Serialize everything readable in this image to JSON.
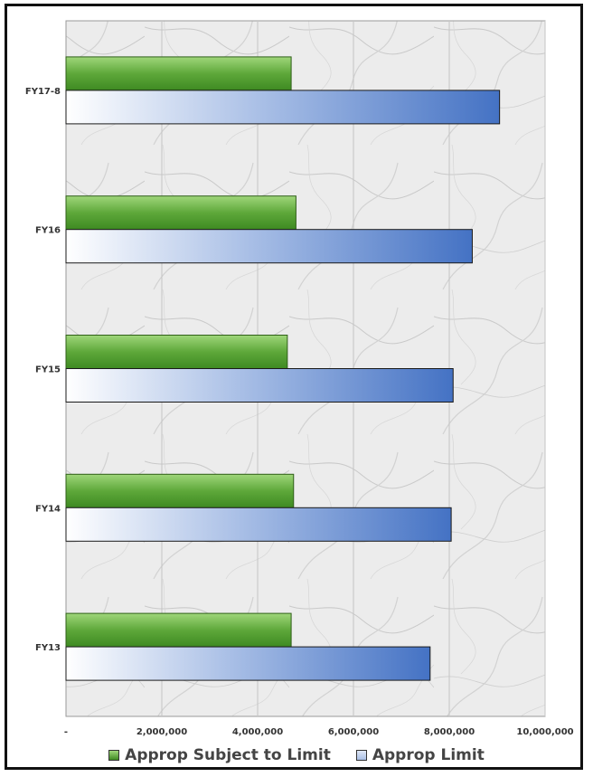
{
  "chart_data": {
    "type": "bar",
    "orientation": "horizontal",
    "categories": [
      "FY17-8",
      "FY16",
      "FY15",
      "FY14",
      "FY13"
    ],
    "series": [
      {
        "name": "Approp Subject to Limit",
        "color": "#4e9a2a",
        "values": [
          4700000,
          4800000,
          4620000,
          4750000,
          4700000
        ]
      },
      {
        "name": "Approp Limit",
        "color": "#4472c4",
        "values": [
          9050000,
          8480000,
          8080000,
          8040000,
          7600000
        ]
      }
    ],
    "x_ticks": [
      "-",
      "2,000,000",
      "4,000,000",
      "6,000,000",
      "8,000,000",
      "10,000,000"
    ],
    "xlim": [
      0,
      10000000
    ],
    "grid": true,
    "legend_position": "bottom",
    "plot_background": "marble texture"
  }
}
